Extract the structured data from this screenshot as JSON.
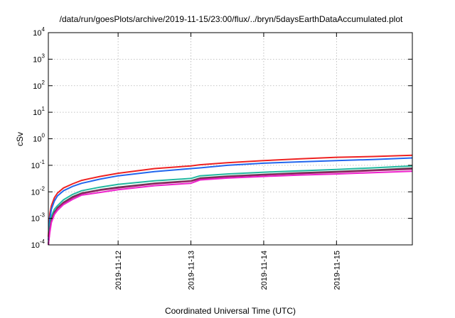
{
  "chart_data": {
    "type": "line",
    "title": "/data/run/goesPlots/archive/2019-11-15/23:00/flux/../bryn/5daysEarthDataAccumulated.plot",
    "xlabel": "Coordinated Universal Time (UTC)",
    "ylabel": "cSv",
    "y_scale": "log",
    "ylim": [
      0.0001,
      10000
    ],
    "y_ticks": [
      {
        "base": "10",
        "exp": "-4",
        "value": 0.0001
      },
      {
        "base": "10",
        "exp": "-3",
        "value": 0.001
      },
      {
        "base": "10",
        "exp": "-2",
        "value": 0.01
      },
      {
        "base": "10",
        "exp": "-1",
        "value": 0.1
      },
      {
        "base": "10",
        "exp": "0",
        "value": 1
      },
      {
        "base": "10",
        "exp": "1",
        "value": 10
      },
      {
        "base": "10",
        "exp": "2",
        "value": 100
      },
      {
        "base": "10",
        "exp": "3",
        "value": 1000
      },
      {
        "base": "10",
        "exp": "4",
        "value": 10000
      }
    ],
    "xlim": [
      "2019-11-11 01:00",
      "2019-11-16 01:00"
    ],
    "x_ticks": [
      "2019-11-12",
      "2019-11-13",
      "2019-11-14",
      "2019-11-15"
    ],
    "grid": true,
    "x": [
      "2019-11-11 01:00",
      "2019-11-11 01:30",
      "2019-11-11 02:00",
      "2019-11-11 03:00",
      "2019-11-11 04:00",
      "2019-11-11 06:00",
      "2019-11-11 09:00",
      "2019-11-11 12:00",
      "2019-11-11 18:00",
      "2019-11-12 00:00",
      "2019-11-12 12:00",
      "2019-11-13 00:00",
      "2019-11-13 03:00",
      "2019-11-13 12:00",
      "2019-11-14 00:00",
      "2019-11-14 12:00",
      "2019-11-15 00:00",
      "2019-11-15 12:00",
      "2019-11-16 01:00"
    ],
    "series": [
      {
        "color": "#ee2222",
        "values": [
          0.0002,
          0.0015,
          0.003,
          0.006,
          0.009,
          0.014,
          0.02,
          0.027,
          0.038,
          0.05,
          0.075,
          0.095,
          0.105,
          0.125,
          0.15,
          0.175,
          0.2,
          0.215,
          0.24
        ]
      },
      {
        "color": "#2266ee",
        "values": [
          0.00015,
          0.001,
          0.0022,
          0.0045,
          0.007,
          0.011,
          0.016,
          0.021,
          0.03,
          0.04,
          0.058,
          0.075,
          0.08,
          0.1,
          0.12,
          0.135,
          0.15,
          0.165,
          0.19
        ]
      },
      {
        "color": "#22b8a0",
        "values": [
          0.0001,
          0.0006,
          0.0012,
          0.0022,
          0.003,
          0.005,
          0.008,
          0.011,
          0.015,
          0.019,
          0.026,
          0.032,
          0.04,
          0.047,
          0.055,
          0.062,
          0.07,
          0.08,
          0.095
        ]
      },
      {
        "color": "#444444",
        "values": [
          0.0001,
          0.0004,
          0.0009,
          0.0017,
          0.0025,
          0.004,
          0.0065,
          0.009,
          0.012,
          0.015,
          0.021,
          0.026,
          0.033,
          0.039,
          0.045,
          0.052,
          0.058,
          0.066,
          0.078
        ]
      },
      {
        "color": "#992266",
        "values": [
          0.0001,
          0.0004,
          0.0008,
          0.0016,
          0.0024,
          0.0038,
          0.006,
          0.0085,
          0.0115,
          0.014,
          0.02,
          0.025,
          0.031,
          0.037,
          0.043,
          0.049,
          0.055,
          0.063,
          0.072
        ]
      },
      {
        "color": "#ee22cc",
        "values": [
          0.0001,
          0.0003,
          0.0007,
          0.0014,
          0.002,
          0.0033,
          0.0052,
          0.0075,
          0.0095,
          0.012,
          0.017,
          0.021,
          0.028,
          0.033,
          0.038,
          0.043,
          0.047,
          0.053,
          0.06
        ]
      }
    ]
  }
}
